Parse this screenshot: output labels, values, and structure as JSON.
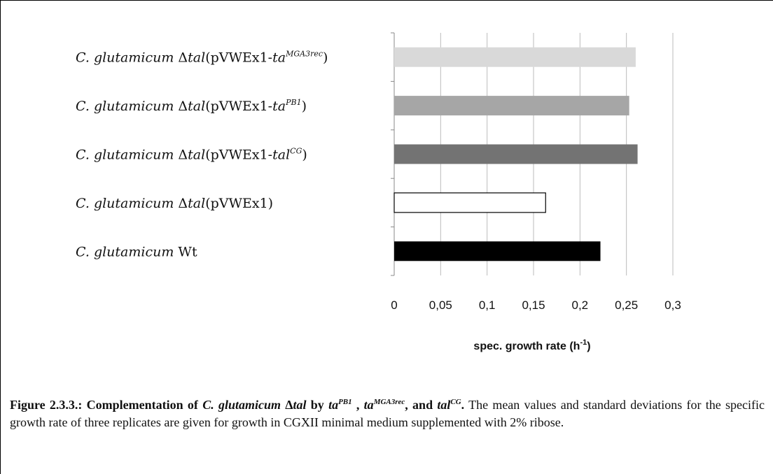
{
  "chart_data": {
    "type": "bar",
    "orientation": "horizontal",
    "categories": [
      "C. glutamicum Δtal(pVWEx1-ta^MGA3rec)",
      "C. glutamicum Δtal(pVWEx1-ta^PB1)",
      "C. glutamicum Δtal(pVWEx1-tal^CG)",
      "C. glutamicum Δtal(pVWEx1)",
      "C. glutamicum Wt"
    ],
    "values": [
      0.26,
      0.253,
      0.262,
      0.163,
      0.222
    ],
    "bar_colors": [
      "#d9d9d9",
      "#a6a6a6",
      "#737373",
      "#ffffff",
      "#000000"
    ],
    "xlim": [
      0,
      0.3
    ],
    "xticks": [
      "0",
      "0,05",
      "0,1",
      "0,15",
      "0,2",
      "0,25",
      "0,3"
    ],
    "xticks_values": [
      0,
      0.05,
      0.1,
      0.15,
      0.2,
      0.25,
      0.3
    ],
    "xlabel": "spec. growth rate (h-1)",
    "grid": true
  },
  "labels": [
    {
      "pre": "C. glutamicum",
      "mid": " Δ",
      "tal": "tal",
      "plasmid": "(pVWEx1-",
      "gene": "ta",
      "sup": "MGA3rec",
      "post": ")"
    },
    {
      "pre": "C. glutamicum",
      "mid": " Δ",
      "tal": "tal",
      "plasmid": "(pVWEx1-",
      "gene": "ta",
      "sup": "PB1",
      "post": ")"
    },
    {
      "pre": "C. glutamicum",
      "mid": " Δ",
      "tal": "tal",
      "plasmid": "(pVWEx1-",
      "gene": "tal",
      "sup": "CG",
      "post": ")"
    },
    {
      "pre": "C. glutamicum",
      "mid": " Δ",
      "tal": "tal",
      "plasmid": "(pVWEx1)",
      "gene": "",
      "sup": "",
      "post": ""
    },
    {
      "pre": "C. glutamicum",
      "mid": " Wt",
      "tal": "",
      "plasmid": "",
      "gene": "",
      "sup": "",
      "post": ""
    }
  ],
  "axis_title": {
    "text": "spec. growth rate (h",
    "sup": "-1",
    "close": ")"
  },
  "caption": {
    "bold_start": "Figure 2.3.3.: Complementation of ",
    "species": "C. glutamicum",
    "delta": " Δ",
    "tal": "tal",
    "by": " by ",
    "g1": "ta",
    "g1sup": "PB1",
    "sep1": " , ",
    "g2": "ta",
    "g2sup": "MGA3rec",
    "sep2": ", and ",
    "g3": "tal",
    "g3sup": "CG",
    "end": ".",
    "body": " The mean values and standard deviations for the specific growth rate of three replicates are given for growth in CGXII minimal medium supplemented with 2% ribose."
  }
}
